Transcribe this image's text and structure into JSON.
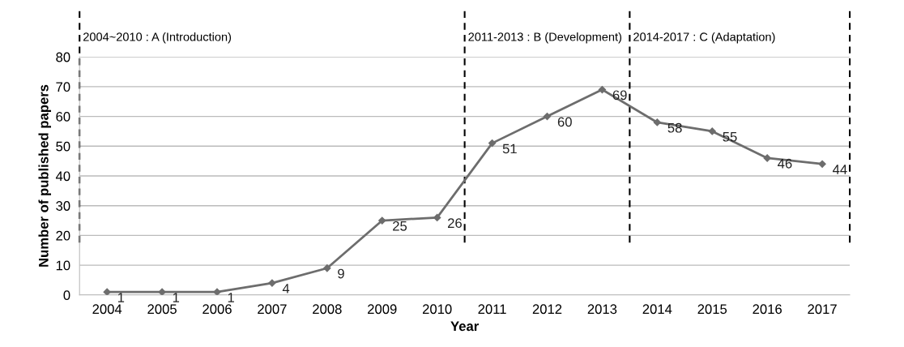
{
  "chart_data": {
    "type": "line",
    "xlabel": "Year",
    "ylabel": "Number of published papers",
    "x": [
      2004,
      2005,
      2006,
      2007,
      2008,
      2009,
      2010,
      2011,
      2012,
      2013,
      2014,
      2015,
      2016,
      2017
    ],
    "xlim": [
      2003.5,
      2017.5
    ],
    "xticks": [
      2004,
      2005,
      2006,
      2007,
      2008,
      2009,
      2010,
      2011,
      2012,
      2013,
      2014,
      2015,
      2016,
      2017
    ],
    "series": [
      {
        "color": "#6d6d6d",
        "values": [
          1,
          1,
          1,
          4,
          9,
          25,
          26,
          51,
          60,
          69,
          58,
          55,
          46,
          44
        ]
      }
    ],
    "ylim": [
      0,
      80
    ],
    "yticks": [
      0,
      10,
      20,
      30,
      40,
      50,
      60,
      70,
      80
    ],
    "grid": "y",
    "marker": "diamond",
    "line_style": "solid",
    "data_labels": true,
    "ref_lines": [
      {
        "axis": "x",
        "value": 2003.5,
        "label": "2004~2010 : A (Introduction)",
        "line_style": "dashed",
        "color": "#000000"
      },
      {
        "axis": "x",
        "value": 2010.5,
        "label": "2011-2013 : B (Development)",
        "line_style": "dashed",
        "color": "#000000"
      },
      {
        "axis": "x",
        "value": 2013.5,
        "label": "2014-2017 : C (Adaptation)",
        "line_style": "dashed",
        "color": "#000000"
      },
      {
        "axis": "x",
        "value": 2017.5,
        "line_style": "dashed",
        "color": "#000000"
      }
    ]
  }
}
